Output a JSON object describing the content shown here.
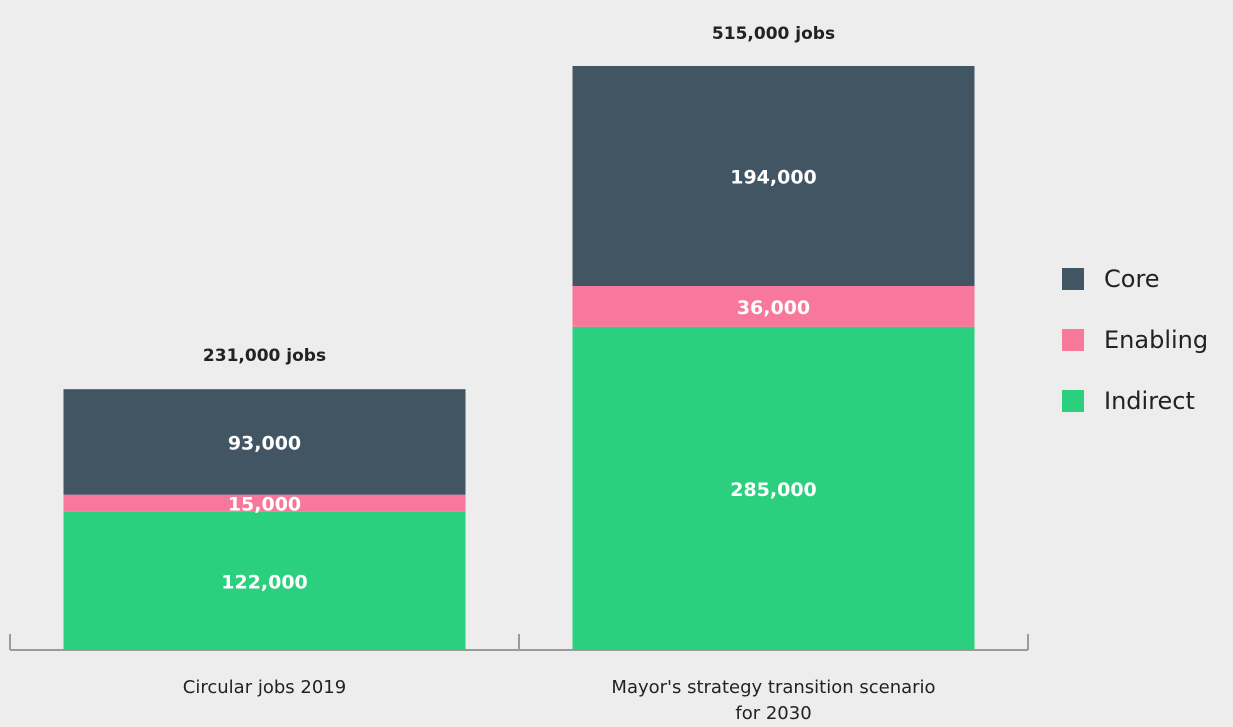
{
  "chart_data": {
    "type": "stacked_bar",
    "categories": [
      "Circular jobs 2019",
      "Mayor's strategy transition scenario for 2030"
    ],
    "series": [
      {
        "name": "Indirect",
        "color": "#2ad07e",
        "values": [
          122000,
          285000
        ],
        "value_labels": [
          "122,000",
          "285,000"
        ]
      },
      {
        "name": "Enabling",
        "color": "#f7789b",
        "values": [
          15000,
          36000
        ],
        "value_labels": [
          "15,000",
          "36,000"
        ]
      },
      {
        "name": "Core",
        "color": "#425563",
        "values": [
          93000,
          194000
        ],
        "value_labels": [
          "93,000",
          "194,000"
        ]
      }
    ],
    "totals": [
      231000,
      515000
    ],
    "total_labels": [
      "231,000 jobs",
      "515,000 jobs"
    ],
    "legend": "right"
  }
}
